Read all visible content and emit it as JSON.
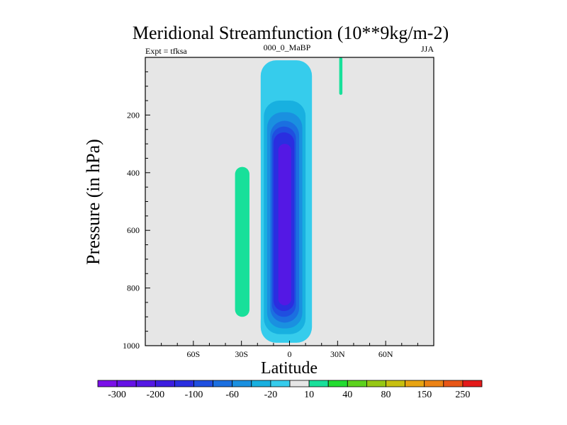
{
  "chart_data": {
    "type": "contour",
    "title": "Meridional Streamfunction (10**9kg/m-2)",
    "left_label": "Expt = tfksa",
    "center_label": "000_0_MaBP",
    "right_label": "JJA",
    "xlabel": "Latitude",
    "ylabel": "Pressure (in hPa)",
    "xlim": [
      -90,
      90
    ],
    "ylim": [
      1000,
      0
    ],
    "x_ticks": [
      {
        "value": -60,
        "label": "60S"
      },
      {
        "value": -30,
        "label": "30S"
      },
      {
        "value": 0,
        "label": "0"
      },
      {
        "value": 30,
        "label": "30N"
      },
      {
        "value": 60,
        "label": "60N"
      }
    ],
    "y_ticks": [
      {
        "value": 200,
        "label": "200"
      },
      {
        "value": 400,
        "label": "400"
      },
      {
        "value": 600,
        "label": "600"
      },
      {
        "value": 800,
        "label": "800"
      },
      {
        "value": 1000,
        "label": "1000"
      }
    ],
    "background_color": "#e6e6e6",
    "levels": [
      -300,
      -250,
      -200,
      -150,
      -100,
      -80,
      -60,
      -40,
      -20,
      -10,
      10,
      20,
      40,
      60,
      80,
      100,
      150,
      200,
      250,
      300
    ],
    "colorbar_labels": [
      "-300",
      "-200",
      "-100",
      "-60",
      "-20",
      "10",
      "40",
      "80",
      "150",
      "250"
    ],
    "colorbar_colors": [
      "#7a10e8",
      "#6512e6",
      "#5418e4",
      "#3d1de0",
      "#2a2ee0",
      "#1f4fe0",
      "#1b6fe0",
      "#1a90e0",
      "#18b0e0",
      "#36ccec",
      "#e6e6e6",
      "#18e09a",
      "#22dc30",
      "#5cd21e",
      "#96c814",
      "#c8c010",
      "#e8a412",
      "#ec8214",
      "#e85616",
      "#e41a1a"
    ],
    "features": [
      {
        "name": "negative-cell-level-1",
        "sign": "negative",
        "level_index": 9,
        "lat_range": [
          -18,
          14
        ],
        "pressure_range": [
          10,
          990
        ]
      },
      {
        "name": "negative-cell-level-2",
        "sign": "negative",
        "level_index": 8,
        "lat_range": [
          -16,
          10
        ],
        "pressure_range": [
          150,
          960
        ]
      },
      {
        "name": "negative-cell-level-3",
        "sign": "negative",
        "level_index": 7,
        "lat_range": [
          -14,
          8
        ],
        "pressure_range": [
          190,
          940
        ]
      },
      {
        "name": "negative-cell-level-4",
        "sign": "negative",
        "level_index": 6,
        "lat_range": [
          -12,
          6
        ],
        "pressure_range": [
          220,
          920
        ]
      },
      {
        "name": "negative-cell-level-5",
        "sign": "negative",
        "level_index": 5,
        "lat_range": [
          -11,
          4
        ],
        "pressure_range": [
          240,
          900
        ]
      },
      {
        "name": "negative-cell-level-6",
        "sign": "negative",
        "level_index": 4,
        "lat_range": [
          -10,
          3
        ],
        "pressure_range": [
          260,
          880
        ]
      },
      {
        "name": "negative-cell-core",
        "sign": "negative",
        "level_index": 2,
        "lat_range": [
          -7,
          1
        ],
        "pressure_range": [
          300,
          860
        ]
      },
      {
        "name": "southern-ferrel-cell",
        "sign": "positive",
        "level_index": 10,
        "lat_range": [
          -42,
          -18
        ],
        "pressure_range": [
          270,
          960
        ]
      },
      {
        "name": "southern-ferrel-core",
        "sign": "positive",
        "level_index": 11,
        "lat_range": [
          -34,
          -25
        ],
        "pressure_range": [
          380,
          900
        ]
      },
      {
        "name": "southern-upper-tongue",
        "sign": "positive",
        "level_index": 10,
        "lat_range": [
          -72,
          -42
        ],
        "pressure_range": [
          0,
          320
        ]
      },
      {
        "name": "northern-positive-strip",
        "sign": "positive",
        "level_index": 10,
        "lat_range": [
          28,
          40
        ],
        "pressure_range": [
          0,
          890
        ]
      },
      {
        "name": "northern-positive-core",
        "sign": "positive",
        "level_index": 11,
        "lat_range": [
          31,
          33
        ],
        "pressure_range": [
          0,
          130
        ]
      }
    ]
  }
}
